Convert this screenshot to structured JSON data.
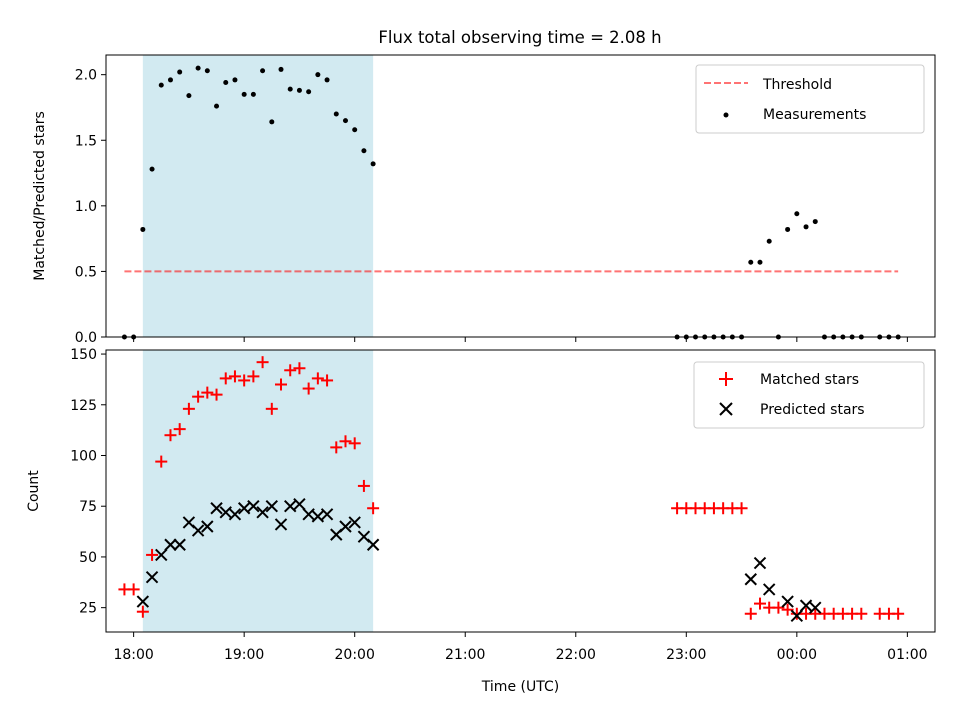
{
  "title": "Flux total observing time = 2.08 h",
  "colors": {
    "shade": "#add8e6",
    "threshold": "#ff0000",
    "measurement": "#000000",
    "matched": "#ff0000",
    "predicted": "#000000"
  },
  "chart_data": [
    {
      "type": "scatter",
      "name": "top-panel",
      "ylabel": "Matched/Predicted stars",
      "ylim": [
        0,
        2.15
      ],
      "xlim": [
        "17:45",
        "01:15"
      ],
      "ytick_values": [
        0.0,
        0.5,
        1.0,
        1.5,
        2.0
      ],
      "ytick_labels": [
        "0.0",
        "0.5",
        "1.0",
        "1.5",
        "2.0"
      ],
      "shaded_interval": [
        "18:05",
        "20:10"
      ],
      "threshold": {
        "y": 0.5,
        "x_from": "17:55",
        "x_to": "00:55"
      },
      "legend": {
        "position": "top-right",
        "entries": [
          "Threshold",
          "Measurements"
        ]
      },
      "series": [
        {
          "name": "Measurements",
          "marker": "dot",
          "points": [
            [
              "17:55",
              0.0
            ],
            [
              "18:00",
              0.0
            ],
            [
              "18:05",
              0.82
            ],
            [
              "18:10",
              1.28
            ],
            [
              "18:15",
              1.92
            ],
            [
              "18:20",
              1.96
            ],
            [
              "18:25",
              2.02
            ],
            [
              "18:30",
              1.84
            ],
            [
              "18:35",
              2.05
            ],
            [
              "18:40",
              2.03
            ],
            [
              "18:45",
              1.76
            ],
            [
              "18:50",
              1.94
            ],
            [
              "18:55",
              1.96
            ],
            [
              "19:00",
              1.85
            ],
            [
              "19:05",
              1.85
            ],
            [
              "19:10",
              2.03
            ],
            [
              "19:15",
              1.64
            ],
            [
              "19:20",
              2.04
            ],
            [
              "19:25",
              1.89
            ],
            [
              "19:30",
              1.88
            ],
            [
              "19:35",
              1.87
            ],
            [
              "19:40",
              2.0
            ],
            [
              "19:45",
              1.96
            ],
            [
              "19:50",
              1.7
            ],
            [
              "19:55",
              1.65
            ],
            [
              "20:00",
              1.58
            ],
            [
              "20:05",
              1.42
            ],
            [
              "20:10",
              1.32
            ],
            [
              "22:55",
              0.0
            ],
            [
              "23:00",
              0.0
            ],
            [
              "23:05",
              0.0
            ],
            [
              "23:10",
              0.0
            ],
            [
              "23:15",
              0.0
            ],
            [
              "23:20",
              0.0
            ],
            [
              "23:25",
              0.0
            ],
            [
              "23:30",
              0.0
            ],
            [
              "23:35",
              0.57
            ],
            [
              "23:40",
              0.57
            ],
            [
              "23:45",
              0.73
            ],
            [
              "23:50",
              0.0
            ],
            [
              "23:55",
              0.82
            ],
            [
              "00:00",
              0.94
            ],
            [
              "00:05",
              0.84
            ],
            [
              "00:10",
              0.88
            ],
            [
              "00:15",
              0.0
            ],
            [
              "00:20",
              0.0
            ],
            [
              "00:25",
              0.0
            ],
            [
              "00:30",
              0.0
            ],
            [
              "00:35",
              0.0
            ],
            [
              "00:45",
              0.0
            ],
            [
              "00:50",
              0.0
            ],
            [
              "00:55",
              0.0
            ]
          ]
        }
      ]
    },
    {
      "type": "scatter",
      "name": "bottom-panel",
      "xlabel": "Time (UTC)",
      "ylabel": "Count",
      "ylim": [
        13,
        152
      ],
      "xlim": [
        "17:45",
        "01:15"
      ],
      "ytick_values": [
        25,
        50,
        75,
        100,
        125,
        150
      ],
      "ytick_labels": [
        "25",
        "50",
        "75",
        "100",
        "125",
        "150"
      ],
      "xtick_values": [
        "18:00",
        "19:00",
        "20:00",
        "21:00",
        "22:00",
        "23:00",
        "00:00",
        "01:00"
      ],
      "xtick_labels": [
        "18:00",
        "19:00",
        "20:00",
        "21:00",
        "22:00",
        "23:00",
        "00:00",
        "01:00"
      ],
      "shaded_interval": [
        "18:05",
        "20:10"
      ],
      "legend": {
        "position": "top-right",
        "entries": [
          "Matched stars",
          "Predicted stars"
        ]
      },
      "series": [
        {
          "name": "Matched stars",
          "marker": "plus",
          "points": [
            [
              "17:55",
              34
            ],
            [
              "18:00",
              34
            ],
            [
              "18:05",
              23
            ],
            [
              "18:10",
              51
            ],
            [
              "18:15",
              97
            ],
            [
              "18:20",
              110
            ],
            [
              "18:25",
              113
            ],
            [
              "18:30",
              123
            ],
            [
              "18:35",
              129
            ],
            [
              "18:40",
              131
            ],
            [
              "18:45",
              130
            ],
            [
              "18:50",
              138
            ],
            [
              "18:55",
              139
            ],
            [
              "19:00",
              137
            ],
            [
              "19:05",
              139
            ],
            [
              "19:10",
              146
            ],
            [
              "19:15",
              123
            ],
            [
              "19:20",
              135
            ],
            [
              "19:25",
              142
            ],
            [
              "19:30",
              143
            ],
            [
              "19:35",
              133
            ],
            [
              "19:40",
              138
            ],
            [
              "19:45",
              137
            ],
            [
              "19:50",
              104
            ],
            [
              "19:55",
              107
            ],
            [
              "20:00",
              106
            ],
            [
              "20:05",
              85
            ],
            [
              "20:10",
              74
            ],
            [
              "22:55",
              74
            ],
            [
              "23:00",
              74
            ],
            [
              "23:05",
              74
            ],
            [
              "23:10",
              74
            ],
            [
              "23:15",
              74
            ],
            [
              "23:20",
              74
            ],
            [
              "23:25",
              74
            ],
            [
              "23:30",
              74
            ],
            [
              "23:35",
              22
            ],
            [
              "23:40",
              27
            ],
            [
              "23:45",
              25
            ],
            [
              "23:50",
              25
            ],
            [
              "23:55",
              24
            ],
            [
              "00:00",
              22
            ],
            [
              "00:05",
              22
            ],
            [
              "00:10",
              22
            ],
            [
              "00:15",
              22
            ],
            [
              "00:20",
              22
            ],
            [
              "00:25",
              22
            ],
            [
              "00:30",
              22
            ],
            [
              "00:35",
              22
            ],
            [
              "00:45",
              22
            ],
            [
              "00:50",
              22
            ],
            [
              "00:55",
              22
            ]
          ]
        },
        {
          "name": "Predicted stars",
          "marker": "x",
          "points": [
            [
              "18:05",
              28
            ],
            [
              "18:10",
              40
            ],
            [
              "18:15",
              51
            ],
            [
              "18:20",
              56
            ],
            [
              "18:25",
              56
            ],
            [
              "18:30",
              67
            ],
            [
              "18:35",
              63
            ],
            [
              "18:40",
              65
            ],
            [
              "18:45",
              74
            ],
            [
              "18:50",
              72
            ],
            [
              "18:55",
              71
            ],
            [
              "19:00",
              74
            ],
            [
              "19:05",
              75
            ],
            [
              "19:10",
              72
            ],
            [
              "19:15",
              75
            ],
            [
              "19:20",
              66
            ],
            [
              "19:25",
              75
            ],
            [
              "19:30",
              76
            ],
            [
              "19:35",
              71
            ],
            [
              "19:40",
              70
            ],
            [
              "19:45",
              71
            ],
            [
              "19:50",
              61
            ],
            [
              "19:55",
              65
            ],
            [
              "20:00",
              67
            ],
            [
              "20:05",
              60
            ],
            [
              "20:10",
              56
            ],
            [
              "23:35",
              39
            ],
            [
              "23:40",
              47
            ],
            [
              "23:45",
              34
            ],
            [
              "23:55",
              28
            ],
            [
              "00:00",
              21
            ],
            [
              "00:05",
              26
            ],
            [
              "00:10",
              25
            ]
          ]
        }
      ]
    }
  ]
}
